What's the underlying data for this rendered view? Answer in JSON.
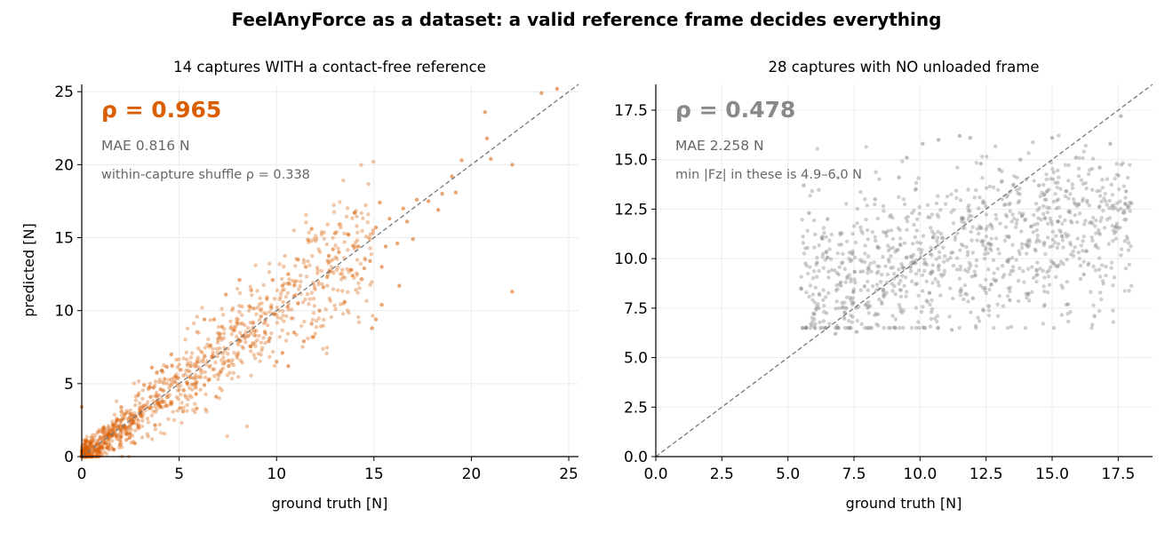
{
  "figure": {
    "title": "FeelAnyForce as a dataset: a valid reference frame decides everything"
  },
  "chart_data": [
    {
      "type": "scatter",
      "title": "14 captures WITH a contact-free reference",
      "xlabel": "ground truth [N]",
      "ylabel": "predicted [N]",
      "xlim": [
        0,
        25.5
      ],
      "ylim": [
        0,
        25.5
      ],
      "xticks": [
        0,
        5,
        10,
        15,
        20,
        25
      ],
      "yticks": [
        0,
        5,
        10,
        15,
        20,
        25
      ],
      "tick_labels_x": [
        "0",
        "5",
        "10",
        "15",
        "20",
        "25"
      ],
      "tick_labels_y": [
        "0",
        "5",
        "10",
        "15",
        "20",
        "25"
      ],
      "grid": true,
      "reference_line": "y = x (dashed)",
      "color": "#d95f02",
      "annotations": {
        "rho": "ρ = 0.965",
        "mae": "MAE 0.816 N",
        "note": "within-capture shuffle ρ = 0.338"
      },
      "points": [
        [
          24.4,
          25.2
        ],
        [
          23.6,
          24.9
        ],
        [
          21.0,
          20.4
        ],
        [
          20.7,
          23.6
        ],
        [
          20.8,
          21.8
        ],
        [
          22.1,
          20.0
        ],
        [
          22.1,
          11.3
        ],
        [
          19.5,
          20.3
        ],
        [
          19.0,
          19.2
        ],
        [
          18.5,
          18.0
        ],
        [
          19.2,
          18.1
        ],
        [
          18.3,
          16.9
        ],
        [
          17.8,
          17.5
        ],
        [
          17.2,
          17.6
        ],
        [
          16.5,
          17.0
        ],
        [
          15.3,
          17.4
        ],
        [
          15.1,
          15.7
        ],
        [
          15.8,
          16.3
        ],
        [
          16.7,
          16.1
        ],
        [
          17.0,
          14.9
        ],
        [
          16.2,
          14.6
        ],
        [
          15.6,
          14.4
        ],
        [
          15.4,
          13.0
        ],
        [
          16.3,
          11.7
        ],
        [
          14.2,
          14.4
        ],
        [
          14.0,
          16.7
        ],
        [
          13.7,
          15.2
        ],
        [
          13.0,
          15.3
        ],
        [
          11.8,
          15.6
        ],
        [
          12.9,
          14.2
        ],
        [
          13.2,
          14.0
        ],
        [
          14.5,
          12.9
        ],
        [
          15.4,
          10.4
        ],
        [
          15.1,
          9.4
        ],
        [
          14.9,
          8.8
        ],
        [
          14.8,
          13.4
        ],
        [
          13.8,
          12.8
        ],
        [
          13.5,
          10.6
        ],
        [
          13.9,
          12.4
        ],
        [
          12.6,
          12.3
        ],
        [
          12.4,
          11.6
        ],
        [
          12.2,
          10.0
        ],
        [
          11.8,
          9.1
        ],
        [
          11.9,
          8.2
        ],
        [
          11.4,
          7.9
        ],
        [
          10.6,
          6.2
        ],
        [
          10.9,
          8.5
        ],
        [
          10.3,
          7.1
        ],
        [
          10.0,
          6.5
        ],
        [
          9.6,
          7.9
        ],
        [
          11.5,
          13.0
        ],
        [
          11.1,
          13.5
        ],
        [
          10.6,
          12.5
        ],
        [
          10.3,
          11.7
        ],
        [
          10.9,
          11.0
        ],
        [
          9.8,
          12.1
        ],
        [
          9.5,
          10.8
        ],
        [
          9.2,
          9.6
        ],
        [
          8.7,
          11.4
        ],
        [
          8.6,
          10.3
        ],
        [
          8.1,
          12.1
        ],
        [
          7.4,
          11.1
        ],
        [
          6.8,
          9.4
        ],
        [
          6.3,
          9.4
        ],
        [
          7.2,
          8.9
        ],
        [
          6.9,
          4.1
        ],
        [
          6.3,
          4.9
        ],
        [
          5.9,
          3.3
        ],
        [
          5.6,
          6.2
        ],
        [
          5.4,
          5.1
        ],
        [
          5.2,
          3.1
        ],
        [
          4.8,
          5.5
        ],
        [
          4.6,
          7.0
        ],
        [
          4.1,
          5.9
        ],
        [
          4.0,
          3.5
        ],
        [
          3.6,
          6.1
        ],
        [
          3.2,
          4.9
        ],
        [
          2.9,
          4.2
        ],
        [
          2.6,
          2.5
        ],
        [
          2.2,
          2.9
        ],
        [
          2.0,
          1.4
        ],
        [
          1.6,
          2.2
        ],
        [
          1.3,
          0.6
        ],
        [
          1.1,
          1.9
        ],
        [
          0.9,
          0.3
        ],
        [
          0.5,
          1.3
        ],
        [
          0.3,
          0.0
        ],
        [
          0.2,
          0.8
        ],
        [
          0.1,
          0.2
        ],
        [
          0.0,
          3.4
        ]
      ],
      "bulk": "≈1,100 further points tightly clustered around y = x between 0 and 15 N"
    },
    {
      "type": "scatter",
      "title": "28 captures with NO unloaded frame",
      "xlabel": "ground truth [N]",
      "ylabel": "",
      "xlim": [
        0,
        18.8
      ],
      "ylim": [
        0,
        18.8
      ],
      "xticks": [
        0,
        2.5,
        5,
        7.5,
        10,
        12.5,
        15,
        17.5
      ],
      "yticks": [
        0,
        2.5,
        5,
        7.5,
        10,
        12.5,
        15,
        17.5
      ],
      "tick_labels_x": [
        "0.0",
        "2.5",
        "5.0",
        "7.5",
        "10.0",
        "12.5",
        "15.0",
        "17.5"
      ],
      "tick_labels_y": [
        "0.0",
        "2.5",
        "5.0",
        "7.5",
        "10.0",
        "12.5",
        "15.0",
        "17.5"
      ],
      "grid": true,
      "reference_line": "y = x (dashed)",
      "color": "#888888",
      "annotations": {
        "rho": "ρ = 0.478",
        "mae": "MAE 2.258 N",
        "note": "min |Fz| in these is 4.9–6.0 N"
      },
      "points": [
        [
          5.5,
          8.5
        ],
        [
          5.6,
          13.7
        ],
        [
          5.8,
          12.3
        ],
        [
          6.0,
          7.2
        ],
        [
          6.1,
          9.8
        ],
        [
          6.3,
          11.0
        ],
        [
          6.5,
          12.0
        ],
        [
          6.8,
          6.2
        ],
        [
          7.0,
          8.8
        ],
        [
          7.2,
          7.5
        ],
        [
          7.6,
          6.3
        ],
        [
          7.9,
          8.6
        ],
        [
          8.3,
          13.0
        ],
        [
          8.7,
          11.3
        ],
        [
          9.2,
          14.1
        ],
        [
          9.5,
          15.1
        ],
        [
          10.1,
          15.8
        ],
        [
          10.7,
          16.0
        ],
        [
          11.2,
          6.4
        ],
        [
          11.5,
          16.2
        ],
        [
          11.9,
          16.1
        ],
        [
          12.0,
          8.0
        ],
        [
          12.3,
          14.8
        ],
        [
          12.6,
          7.6
        ],
        [
          13.0,
          14.5
        ],
        [
          13.4,
          7.9
        ],
        [
          13.8,
          15.0
        ],
        [
          14.1,
          8.2
        ],
        [
          14.5,
          13.7
        ],
        [
          14.7,
          10.8
        ],
        [
          15.0,
          16.1
        ],
        [
          15.2,
          9.6
        ],
        [
          15.6,
          7.7
        ],
        [
          15.9,
          15.1
        ],
        [
          16.2,
          9.2
        ],
        [
          16.6,
          7.1
        ],
        [
          16.8,
          14.6
        ],
        [
          17.2,
          15.8
        ],
        [
          17.4,
          11.6
        ],
        [
          17.6,
          17.2
        ],
        [
          17.8,
          13.4
        ],
        [
          18.0,
          12.8
        ]
      ],
      "bulk": "≈1,000 further points filling x 5.5–18, y 6.5–16.5 with only weak trend"
    }
  ]
}
